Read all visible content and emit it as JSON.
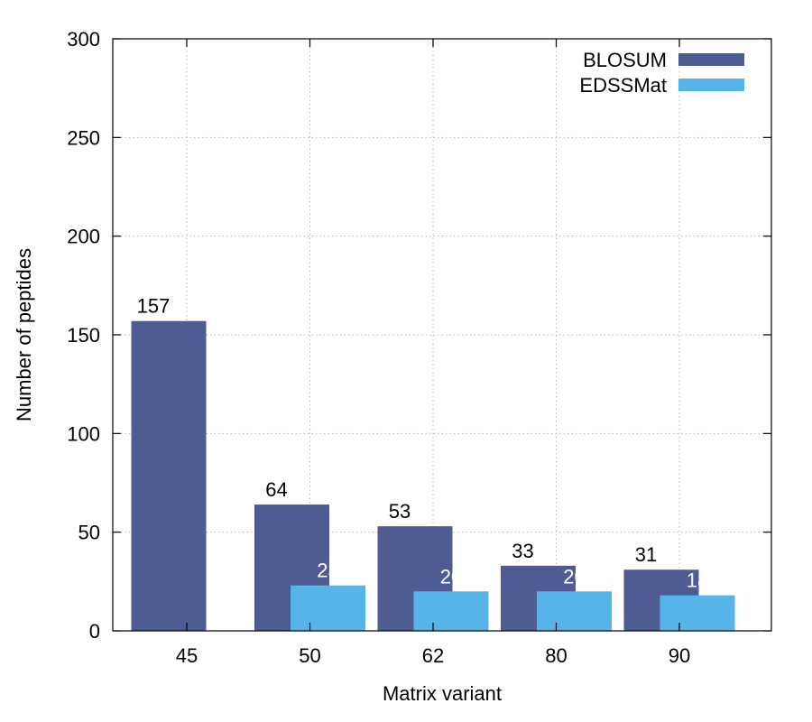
{
  "chart_data": {
    "type": "bar",
    "title": "",
    "xlabel": "Matrix variant",
    "ylabel": "Number of peptides",
    "ylim": [
      0,
      300
    ],
    "yticks": [
      0,
      50,
      100,
      150,
      200,
      250,
      300
    ],
    "categories": [
      "45",
      "50",
      "62",
      "80",
      "90"
    ],
    "grid": true,
    "legend_position": "top-right",
    "series": [
      {
        "name": "BLOSUM",
        "color": "#4f5b93",
        "label_color": "#000000",
        "values": [
          157,
          64,
          53,
          33,
          31
        ]
      },
      {
        "name": "EDSSMat",
        "color": "#56b4e9",
        "label_color": "#ffffff",
        "values": [
          null,
          23,
          20,
          20,
          18
        ]
      }
    ]
  }
}
